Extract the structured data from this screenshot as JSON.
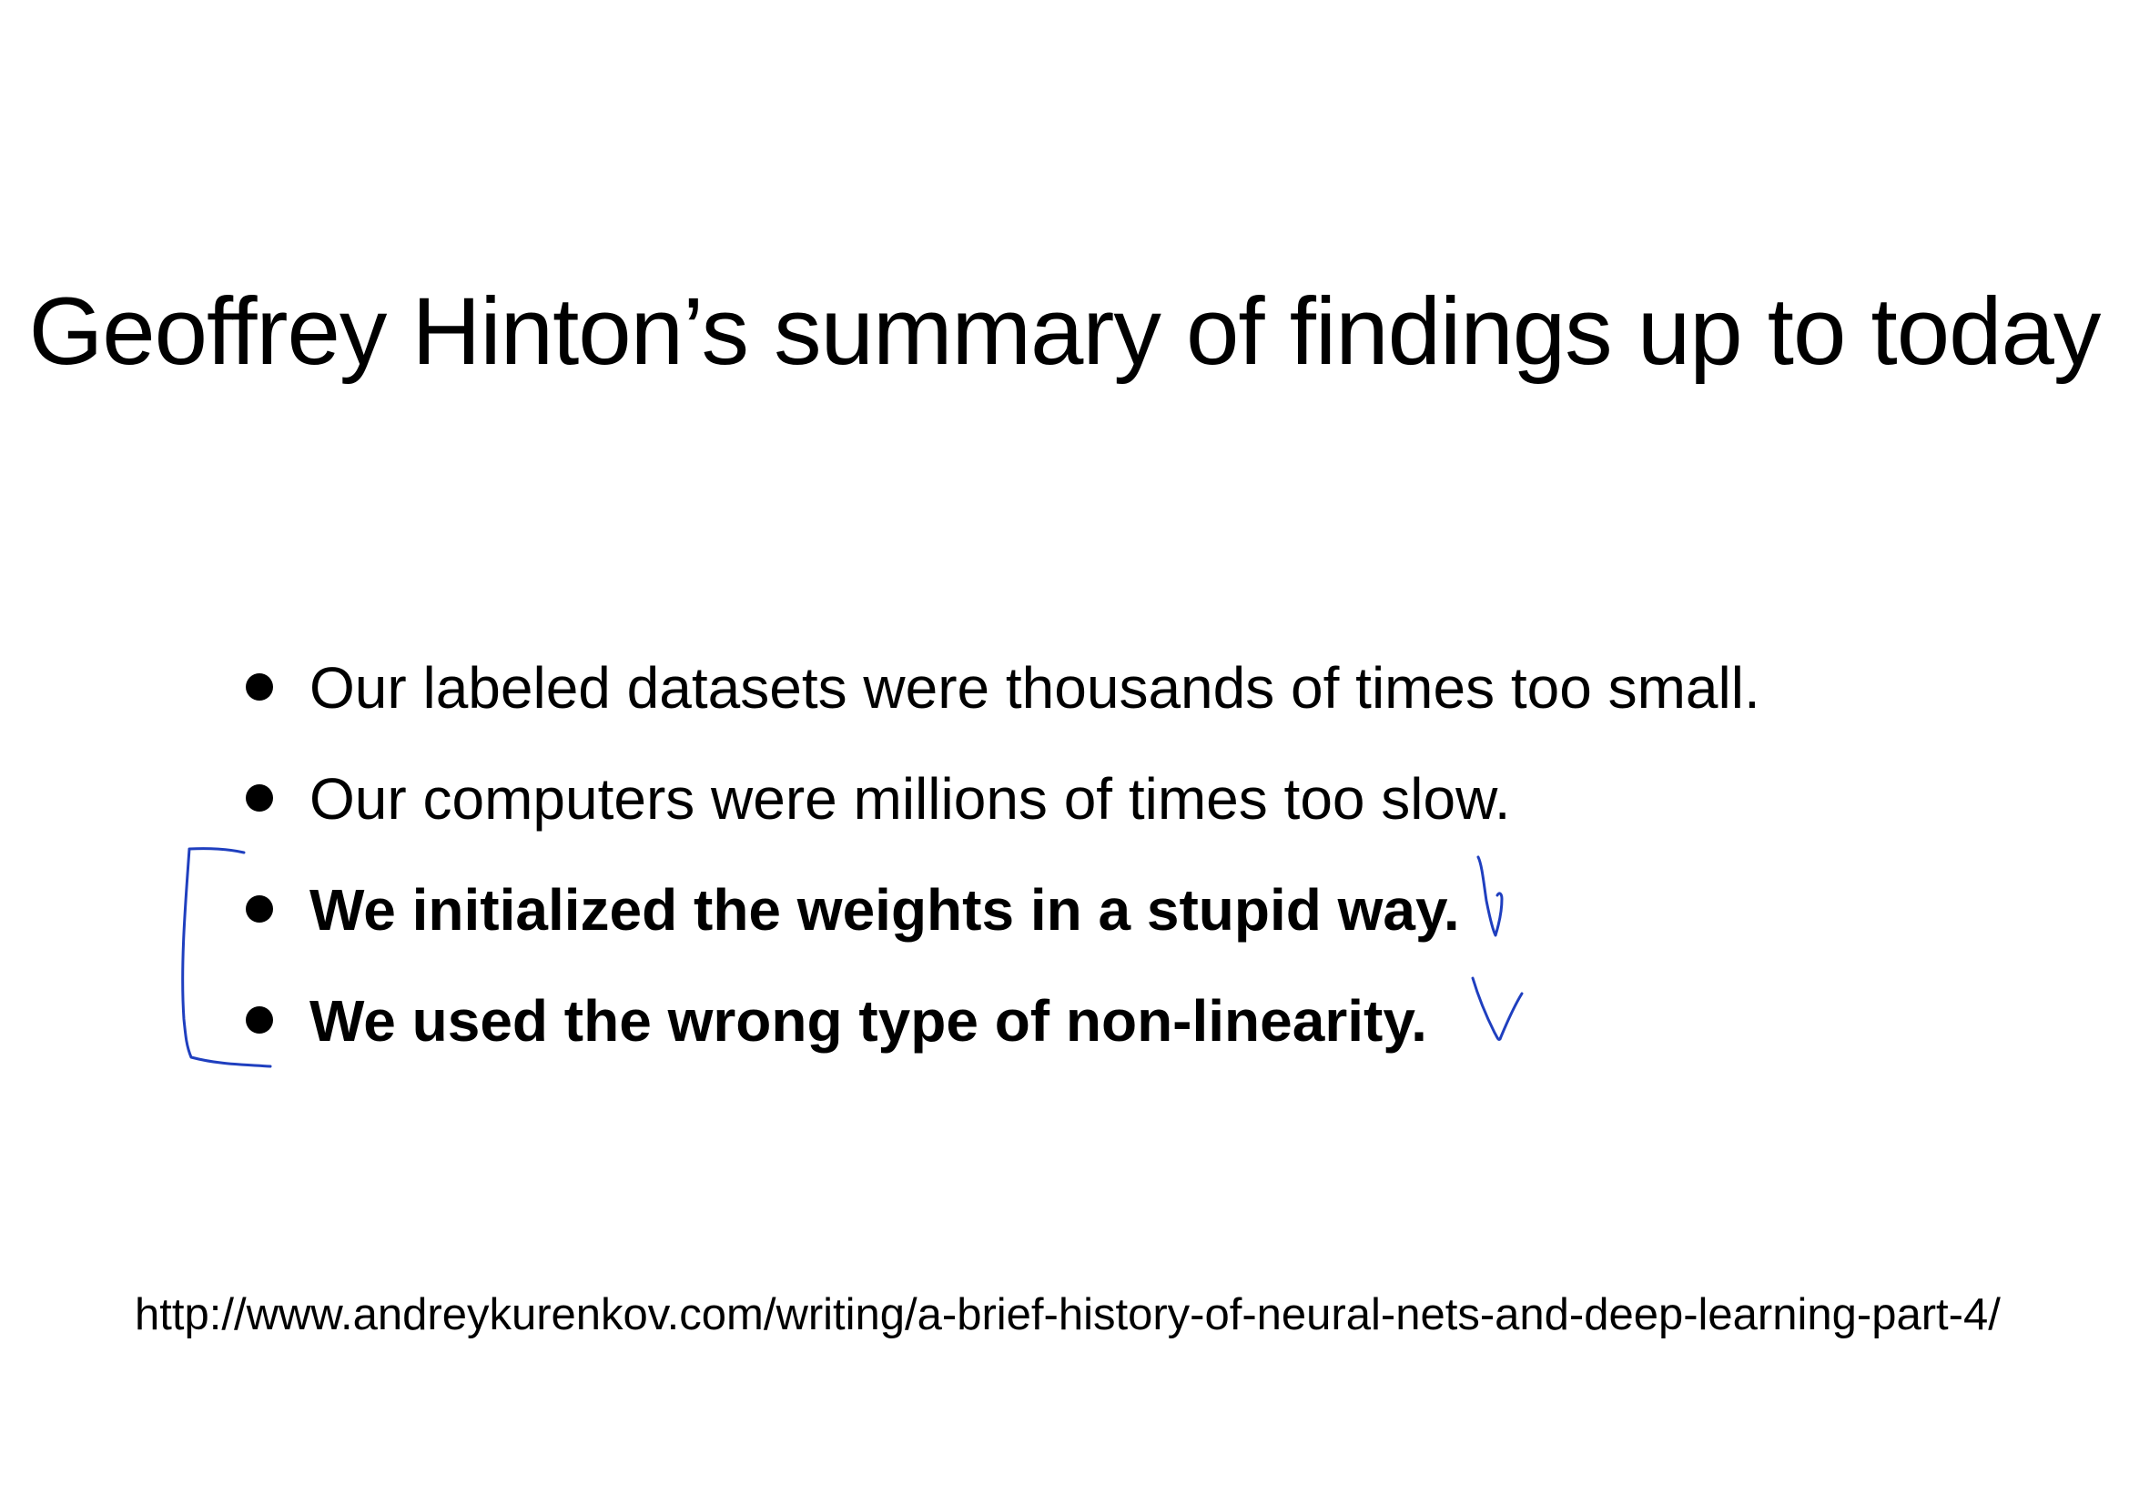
{
  "slide": {
    "title": "Geoffrey Hinton’s summary of findings up to today",
    "bullets": [
      {
        "text": "Our labeled datasets were thousands of times too small.",
        "bold": false
      },
      {
        "text": "Our computers were millions of times too slow.",
        "bold": false
      },
      {
        "text": "We initialized the weights in a stupid way.",
        "bold": true
      },
      {
        "text": "We used the wrong type of non-linearity.",
        "bold": true
      }
    ],
    "source_url": "http://www.andreykurenkov.com/writing/a-brief-history-of-neural-nets-and-deep-learning-part-4/"
  },
  "annotations": {
    "ink_color": "#1f3fbf",
    "marks": [
      "bracket",
      "checkmark",
      "checkmark"
    ]
  }
}
